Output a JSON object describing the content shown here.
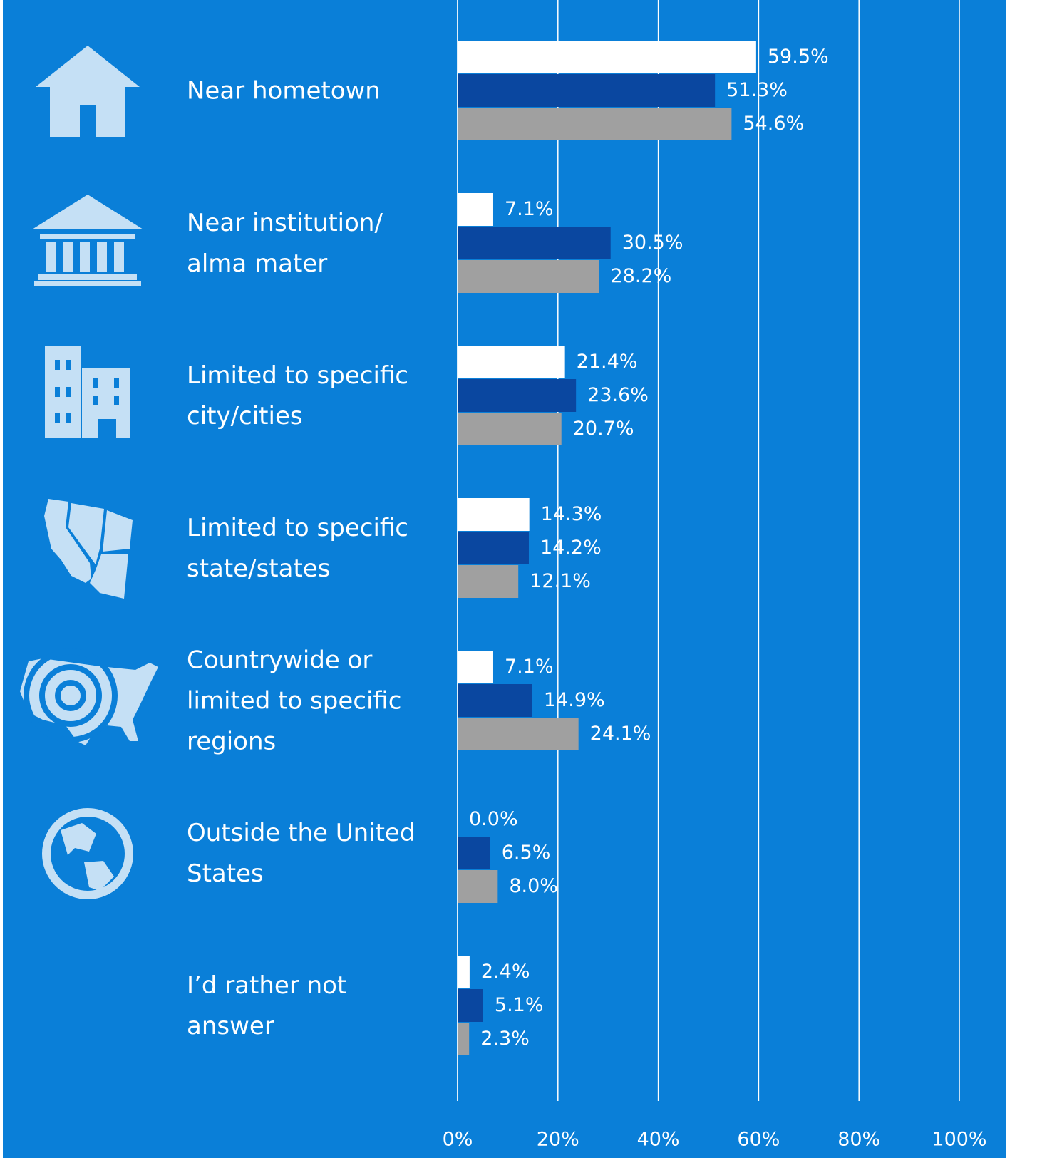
{
  "chart_data": {
    "type": "bar",
    "categories": [
      "Near hometown",
      "Near institution/\nalma mater",
      "Limited to specific\ncity/cities",
      "Limited to specific\nstate/states",
      "Countrywide or\nlimited to specific\nregions",
      "Outside the United\nStates",
      "I’d rather not\nanswer"
    ],
    "series": [
      {
        "color": "#ffffff",
        "values": [
          59.5,
          7.1,
          21.4,
          14.3,
          7.1,
          0.0,
          2.4
        ],
        "value_labels": [
          "59.5%",
          "7.1%",
          "21.4%",
          "14.3%",
          "7.1%",
          "0.0%",
          "2.4%"
        ]
      },
      {
        "color": "#0a47a0",
        "values": [
          51.3,
          30.5,
          23.6,
          14.2,
          14.9,
          6.5,
          5.1
        ],
        "value_labels": [
          "51.3%",
          "30.5%",
          "23.6%",
          "14.2%",
          "14.9%",
          "6.5%",
          "5.1%"
        ]
      },
      {
        "color": "#a0a0a0",
        "values": [
          54.6,
          28.2,
          20.7,
          12.1,
          24.1,
          8.0,
          2.3
        ],
        "value_labels": [
          "54.6%",
          "28.2%",
          "20.7%",
          "12.1%",
          "24.1%",
          "8.0%",
          "2.3%"
        ]
      }
    ],
    "xlim": [
      0,
      100
    ],
    "xticks": [
      {
        "value": 0,
        "label": "0%"
      },
      {
        "value": 20,
        "label": "20%"
      },
      {
        "value": 40,
        "label": "40%"
      },
      {
        "value": 60,
        "label": "60%"
      },
      {
        "value": 80,
        "label": "80%"
      },
      {
        "value": 100,
        "label": "100%"
      }
    ],
    "grid": true
  }
}
